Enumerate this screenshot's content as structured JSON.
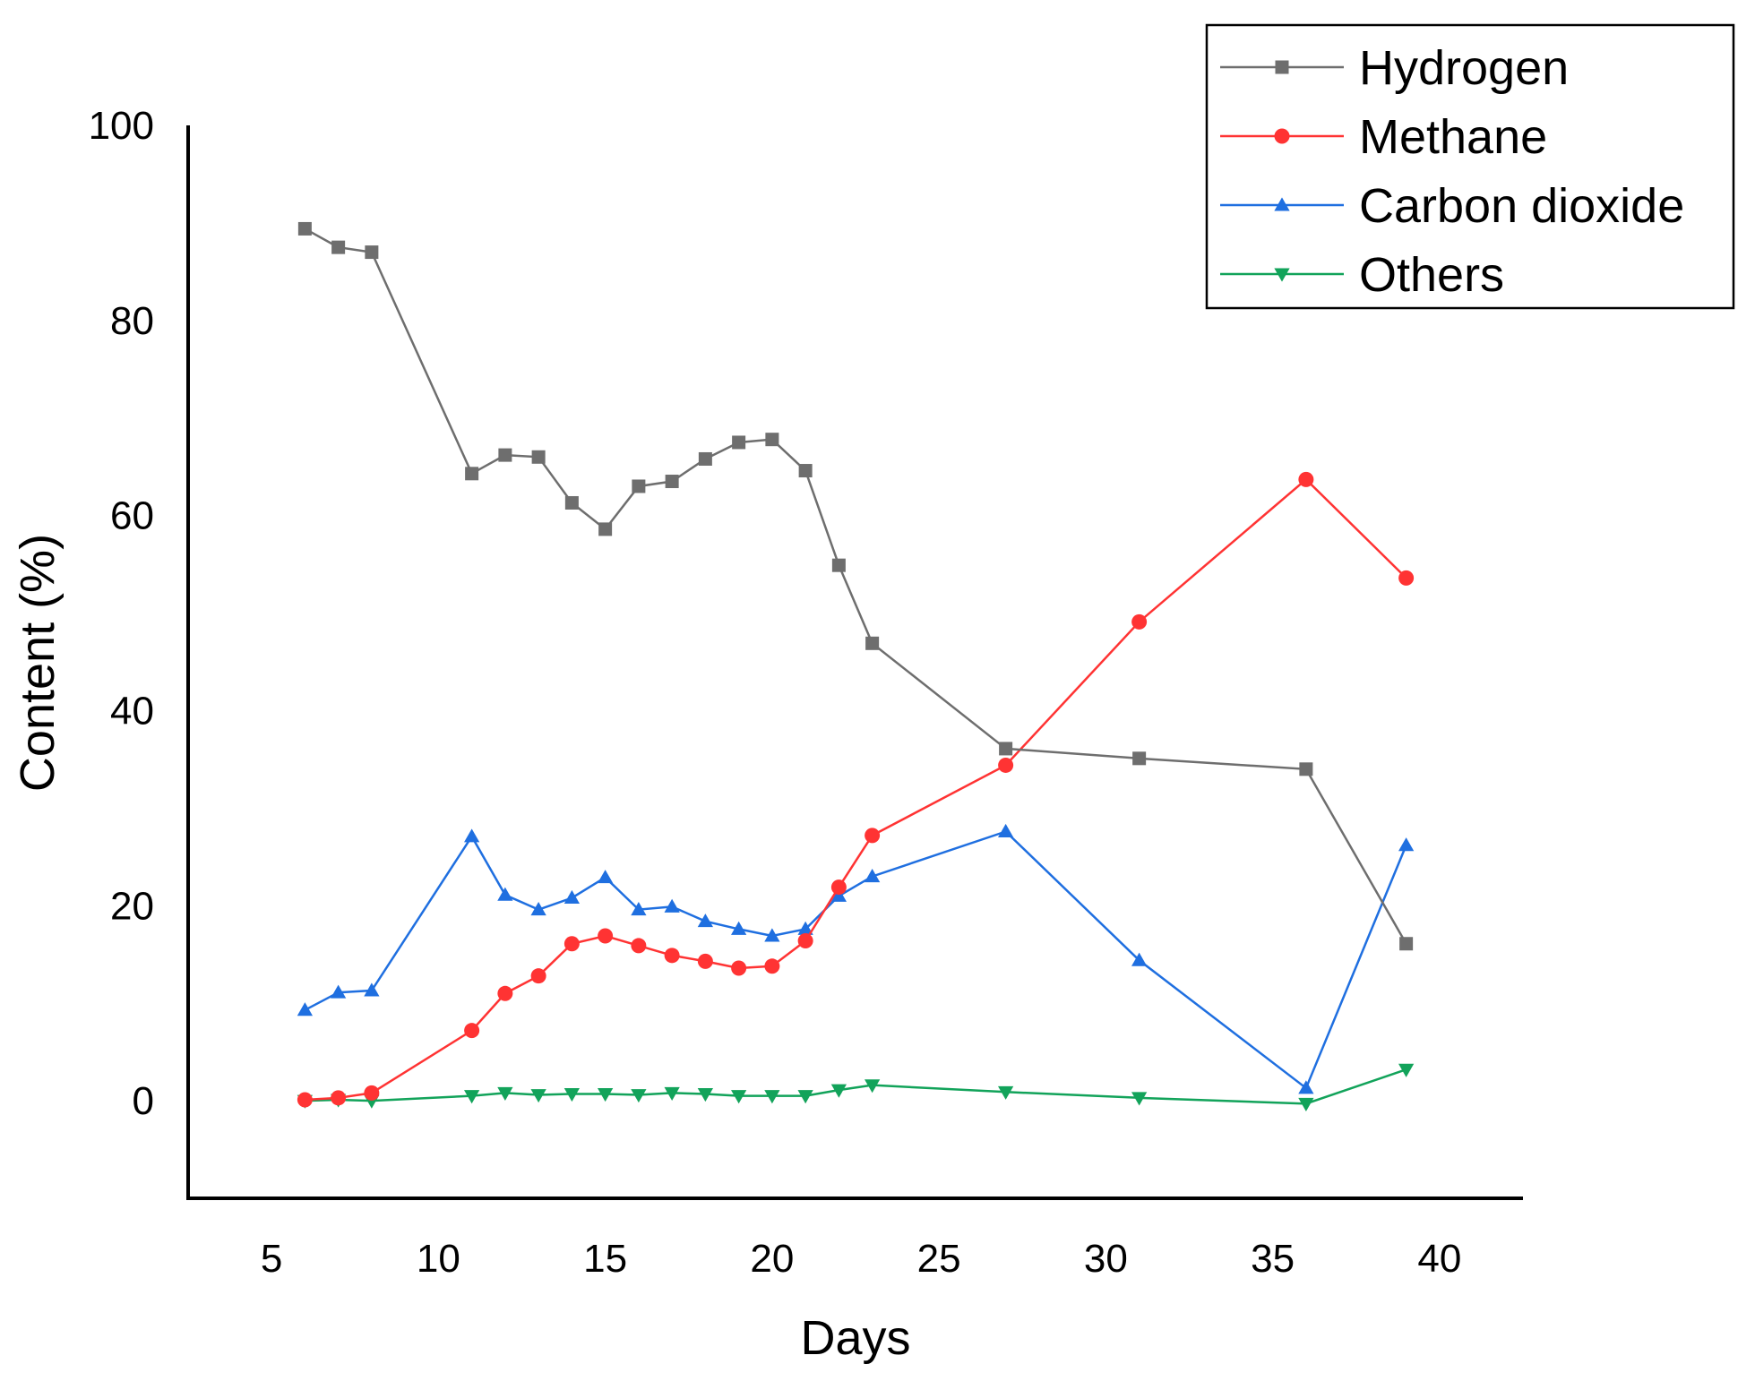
{
  "chart_data": {
    "type": "line",
    "title": "",
    "xlabel": "Days",
    "ylabel": "Content (%)",
    "xlim": [
      2.5,
      42.5
    ],
    "ylim": [
      -10,
      100
    ],
    "xticks": [
      5,
      10,
      15,
      20,
      25,
      30,
      35,
      40
    ],
    "yticks": [
      0,
      20,
      40,
      60,
      80,
      100
    ],
    "grid": false,
    "legend_position": "top-right",
    "x": [
      6,
      7,
      8,
      11,
      12,
      13,
      14,
      15,
      16,
      17,
      18,
      19,
      20,
      21,
      22,
      23,
      27,
      31,
      36,
      39
    ],
    "series": [
      {
        "name": "Hydrogen",
        "color": "#6e6e6e",
        "marker": "square",
        "values": [
          89.4,
          87.5,
          87.0,
          64.3,
          66.2,
          66.0,
          61.3,
          58.6,
          63.0,
          63.5,
          65.8,
          67.5,
          67.8,
          64.6,
          54.9,
          46.9,
          36.1,
          35.1,
          34.0,
          16.1
        ]
      },
      {
        "name": "Methane",
        "color": "#ff3333",
        "marker": "circle",
        "values": [
          0.1,
          0.3,
          0.8,
          7.2,
          11.0,
          12.8,
          16.1,
          16.9,
          15.9,
          14.9,
          14.3,
          13.6,
          13.8,
          16.4,
          21.9,
          27.2,
          34.4,
          49.1,
          63.7,
          53.6
        ]
      },
      {
        "name": "Carbon dioxide",
        "color": "#1f6fe0",
        "marker": "triangle-up",
        "values": [
          9.3,
          11.1,
          11.3,
          27.1,
          21.1,
          19.6,
          20.8,
          22.9,
          19.6,
          19.9,
          18.4,
          17.6,
          16.9,
          17.6,
          21.0,
          23.0,
          27.6,
          14.4,
          1.3,
          26.2
        ]
      },
      {
        "name": "Others",
        "color": "#12a35a",
        "marker": "triangle-down",
        "values": [
          0.0,
          0.1,
          0.0,
          0.5,
          0.8,
          0.6,
          0.7,
          0.7,
          0.6,
          0.8,
          0.7,
          0.5,
          0.5,
          0.5,
          1.1,
          1.6,
          0.9,
          0.3,
          -0.3,
          3.2
        ]
      }
    ]
  }
}
